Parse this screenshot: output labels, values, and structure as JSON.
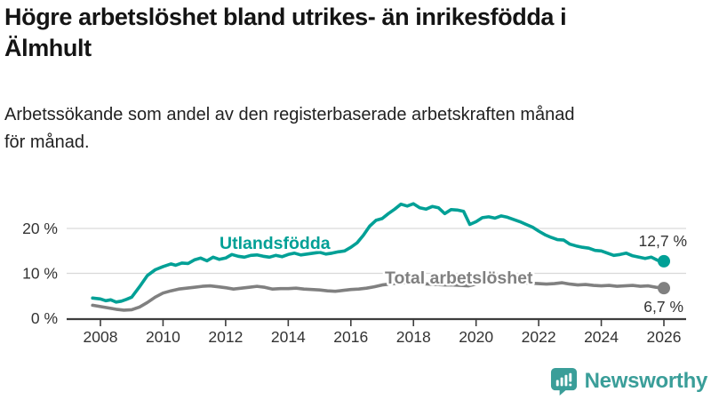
{
  "header": {
    "title_lines": [
      "Högre arbetslöshet bland utrikes- än inrikesfödda i",
      "Älmhult"
    ],
    "subtitle_lines": [
      "Arbetssökande som andel av den registerbaserade arbetskraften månad",
      "för månad."
    ]
  },
  "chart_data": {
    "type": "line",
    "title": "Högre arbetslöshet bland utrikes- än inrikesfödda i Älmhult",
    "subtitle": "Arbetssökande som andel av den registerbaserade arbetskraften månad för månad.",
    "xlabel": "",
    "ylabel": "",
    "grid": "horizontal",
    "legend_position": "inline-labels",
    "xlim": [
      2007.6,
      2026.7
    ],
    "ylim": [
      0,
      27
    ],
    "x_ticks": [
      2008,
      2010,
      2012,
      2014,
      2016,
      2018,
      2020,
      2022,
      2024,
      2026
    ],
    "y_ticks": [
      {
        "value": 0,
        "label": "0 %"
      },
      {
        "value": 10,
        "label": "10 %"
      },
      {
        "value": 20,
        "label": "20 %"
      }
    ],
    "series": [
      {
        "name": "Utlandsfödda",
        "color": "#00a096",
        "end_value": 12.7,
        "end_label": "12,7 %",
        "points": [
          [
            2007.75,
            4.5
          ],
          [
            2008,
            4.3
          ],
          [
            2008.17,
            3.9
          ],
          [
            2008.33,
            4.1
          ],
          [
            2008.5,
            3.6
          ],
          [
            2008.67,
            3.8
          ],
          [
            2008.83,
            4.2
          ],
          [
            2009,
            4.7
          ],
          [
            2009.25,
            7.0
          ],
          [
            2009.5,
            9.5
          ],
          [
            2009.75,
            10.8
          ],
          [
            2010,
            11.5
          ],
          [
            2010.25,
            12.1
          ],
          [
            2010.4,
            11.8
          ],
          [
            2010.6,
            12.3
          ],
          [
            2010.8,
            12.2
          ],
          [
            2011,
            13.0
          ],
          [
            2011.2,
            13.4
          ],
          [
            2011.4,
            12.8
          ],
          [
            2011.6,
            13.6
          ],
          [
            2011.8,
            13.1
          ],
          [
            2012,
            13.4
          ],
          [
            2012.2,
            14.2
          ],
          [
            2012.4,
            13.8
          ],
          [
            2012.6,
            13.6
          ],
          [
            2012.8,
            14.0
          ],
          [
            2013,
            14.1
          ],
          [
            2013.2,
            13.8
          ],
          [
            2013.4,
            13.6
          ],
          [
            2013.6,
            14.0
          ],
          [
            2013.8,
            13.7
          ],
          [
            2014,
            14.2
          ],
          [
            2014.2,
            14.5
          ],
          [
            2014.4,
            14.1
          ],
          [
            2014.6,
            14.3
          ],
          [
            2014.8,
            14.5
          ],
          [
            2015,
            14.7
          ],
          [
            2015.2,
            14.3
          ],
          [
            2015.4,
            14.5
          ],
          [
            2015.6,
            14.8
          ],
          [
            2015.8,
            15.0
          ],
          [
            2016,
            15.8
          ],
          [
            2016.2,
            16.8
          ],
          [
            2016.4,
            18.5
          ],
          [
            2016.6,
            20.5
          ],
          [
            2016.8,
            21.8
          ],
          [
            2017,
            22.2
          ],
          [
            2017.2,
            23.3
          ],
          [
            2017.4,
            24.3
          ],
          [
            2017.6,
            25.4
          ],
          [
            2017.8,
            25.0
          ],
          [
            2018,
            25.5
          ],
          [
            2018.2,
            24.6
          ],
          [
            2018.4,
            24.3
          ],
          [
            2018.6,
            24.9
          ],
          [
            2018.8,
            24.6
          ],
          [
            2019,
            23.3
          ],
          [
            2019.2,
            24.2
          ],
          [
            2019.4,
            24.1
          ],
          [
            2019.6,
            23.8
          ],
          [
            2019.8,
            20.9
          ],
          [
            2020,
            21.5
          ],
          [
            2020.2,
            22.4
          ],
          [
            2020.4,
            22.6
          ],
          [
            2020.6,
            22.3
          ],
          [
            2020.8,
            22.8
          ],
          [
            2021,
            22.5
          ],
          [
            2021.2,
            22.0
          ],
          [
            2021.4,
            21.5
          ],
          [
            2021.6,
            20.9
          ],
          [
            2021.8,
            20.3
          ],
          [
            2022,
            19.4
          ],
          [
            2022.2,
            18.6
          ],
          [
            2022.4,
            18.0
          ],
          [
            2022.6,
            17.5
          ],
          [
            2022.8,
            17.4
          ],
          [
            2023,
            16.5
          ],
          [
            2023.2,
            16.1
          ],
          [
            2023.4,
            15.8
          ],
          [
            2023.6,
            15.6
          ],
          [
            2023.8,
            15.1
          ],
          [
            2024,
            15.0
          ],
          [
            2024.2,
            14.5
          ],
          [
            2024.4,
            14.0
          ],
          [
            2024.6,
            14.2
          ],
          [
            2024.8,
            14.5
          ],
          [
            2025,
            13.9
          ],
          [
            2025.2,
            13.6
          ],
          [
            2025.4,
            13.3
          ],
          [
            2025.6,
            13.6
          ],
          [
            2025.8,
            12.9
          ],
          [
            2026,
            12.7
          ]
        ]
      },
      {
        "name": "Total arbetslöshet",
        "color": "#808080",
        "end_value": 6.7,
        "end_label": "6,7 %",
        "points": [
          [
            2007.75,
            2.9
          ],
          [
            2008,
            2.6
          ],
          [
            2008.25,
            2.3
          ],
          [
            2008.5,
            2.0
          ],
          [
            2008.75,
            1.8
          ],
          [
            2009,
            1.9
          ],
          [
            2009.25,
            2.5
          ],
          [
            2009.5,
            3.5
          ],
          [
            2009.75,
            4.7
          ],
          [
            2010,
            5.6
          ],
          [
            2010.25,
            6.1
          ],
          [
            2010.5,
            6.5
          ],
          [
            2010.75,
            6.7
          ],
          [
            2011,
            6.9
          ],
          [
            2011.25,
            7.1
          ],
          [
            2011.5,
            7.2
          ],
          [
            2011.75,
            7.0
          ],
          [
            2012,
            6.8
          ],
          [
            2012.25,
            6.5
          ],
          [
            2012.5,
            6.7
          ],
          [
            2012.75,
            6.9
          ],
          [
            2013,
            7.1
          ],
          [
            2013.25,
            6.9
          ],
          [
            2013.5,
            6.5
          ],
          [
            2013.75,
            6.6
          ],
          [
            2014,
            6.6
          ],
          [
            2014.25,
            6.7
          ],
          [
            2014.5,
            6.5
          ],
          [
            2014.75,
            6.4
          ],
          [
            2015,
            6.3
          ],
          [
            2015.25,
            6.1
          ],
          [
            2015.5,
            6.0
          ],
          [
            2015.75,
            6.2
          ],
          [
            2016,
            6.4
          ],
          [
            2016.25,
            6.5
          ],
          [
            2016.5,
            6.7
          ],
          [
            2016.75,
            7.0
          ],
          [
            2017,
            7.4
          ],
          [
            2017.25,
            7.6
          ],
          [
            2017.5,
            7.8
          ],
          [
            2017.75,
            7.9
          ],
          [
            2018,
            7.8
          ],
          [
            2018.25,
            7.7
          ],
          [
            2018.5,
            7.6
          ],
          [
            2018.75,
            7.5
          ],
          [
            2019,
            7.4
          ],
          [
            2019.25,
            7.4
          ],
          [
            2019.5,
            7.3
          ],
          [
            2019.75,
            7.2
          ],
          [
            2020,
            7.6
          ],
          [
            2020.25,
            8.2
          ],
          [
            2020.5,
            8.5
          ],
          [
            2020.75,
            8.4
          ],
          [
            2021,
            8.2
          ],
          [
            2021.25,
            8.0
          ],
          [
            2021.5,
            7.9
          ],
          [
            2021.75,
            7.8
          ],
          [
            2022,
            7.7
          ],
          [
            2022.25,
            7.6
          ],
          [
            2022.5,
            7.7
          ],
          [
            2022.75,
            7.9
          ],
          [
            2023,
            7.6
          ],
          [
            2023.25,
            7.4
          ],
          [
            2023.5,
            7.5
          ],
          [
            2023.75,
            7.3
          ],
          [
            2024,
            7.2
          ],
          [
            2024.25,
            7.3
          ],
          [
            2024.5,
            7.1
          ],
          [
            2024.75,
            7.2
          ],
          [
            2025,
            7.3
          ],
          [
            2025.25,
            7.1
          ],
          [
            2025.5,
            7.2
          ],
          [
            2025.75,
            6.9
          ],
          [
            2026,
            6.7
          ]
        ]
      }
    ]
  },
  "colors": {
    "accent_teal": "#00a096",
    "series_gray": "#808080",
    "grid": "#d9d9d9",
    "axis": "#3d3d3d",
    "text": "#333333",
    "logo_teal": "#3a9e99"
  },
  "logo": {
    "text": "Newsworthy"
  }
}
